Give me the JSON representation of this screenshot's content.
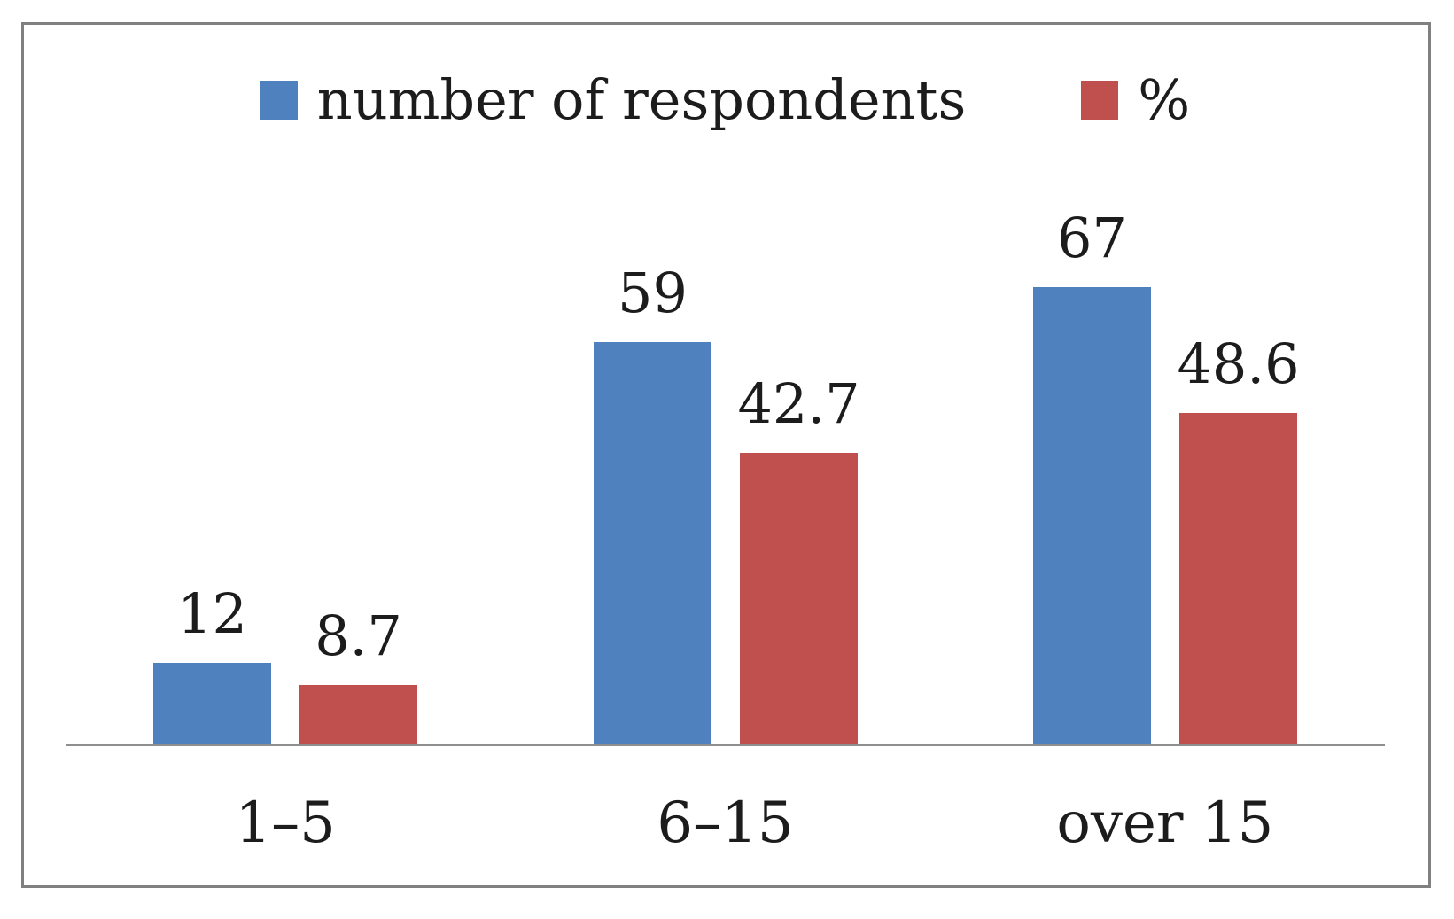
{
  "chart_data": {
    "type": "bar",
    "categories": [
      "1–5",
      "6–15",
      "over 15"
    ],
    "series": [
      {
        "name": "number of respondents",
        "color": "#4e81bd",
        "values": [
          12,
          59,
          67
        ]
      },
      {
        "name": "%",
        "color": "#c0504d",
        "values": [
          8.7,
          42.7,
          48.6
        ]
      }
    ],
    "title": "",
    "xlabel": "",
    "ylabel": "",
    "ylim": [
      0,
      72
    ],
    "grid": false,
    "legend_position": "top-center",
    "data_labels": true,
    "colors": {
      "axis_line": "#8e8e8e",
      "frame_border": "#808080",
      "background": "#ffffff",
      "text": "#1c1c1c"
    }
  }
}
